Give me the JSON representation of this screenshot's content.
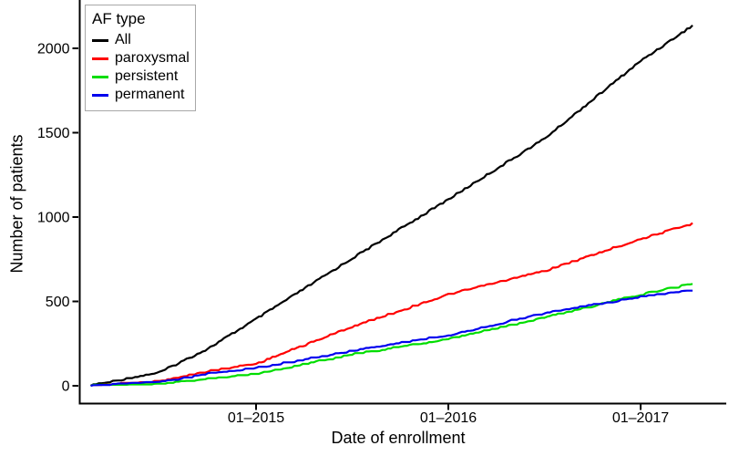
{
  "chart_data": {
    "type": "line",
    "title": "",
    "xlabel": "Date of enrollment",
    "ylabel": "Number of patients",
    "grid": "off",
    "ylim": [
      0,
      2150
    ],
    "x_range_years": [
      2014.14,
      2017.27
    ],
    "y_ticks": [
      0,
      500,
      1000,
      1500,
      2000
    ],
    "x_ticks": [
      {
        "label": "01–2015",
        "year": 2015.0
      },
      {
        "label": "01–2016",
        "year": 2016.0
      },
      {
        "label": "01–2017",
        "year": 2017.0
      }
    ],
    "legend": {
      "title": "AF type",
      "position": "top-left",
      "items": [
        "All",
        "paroxysmal",
        "persistent",
        "permanent"
      ]
    },
    "x_years": [
      2014.14,
      2014.5,
      2014.75,
      2015.0,
      2015.5,
      2016.0,
      2016.5,
      2017.0,
      2017.27
    ],
    "series": [
      {
        "name": "All",
        "color": "#000000",
        "values": [
          0,
          80,
          220,
          395,
          755,
          1105,
          1465,
          1925,
          2135
        ]
      },
      {
        "name": "paroxysmal",
        "color": "#ff0000",
        "values": [
          0,
          25,
          85,
          130,
          350,
          540,
          680,
          870,
          960
        ]
      },
      {
        "name": "persistent",
        "color": "#00dd00",
        "values": [
          0,
          8,
          40,
          70,
          185,
          275,
          405,
          540,
          605
        ]
      },
      {
        "name": "permanent",
        "color": "#0000ee",
        "values": [
          0,
          20,
          70,
          105,
          205,
          300,
          430,
          525,
          565
        ]
      }
    ]
  }
}
